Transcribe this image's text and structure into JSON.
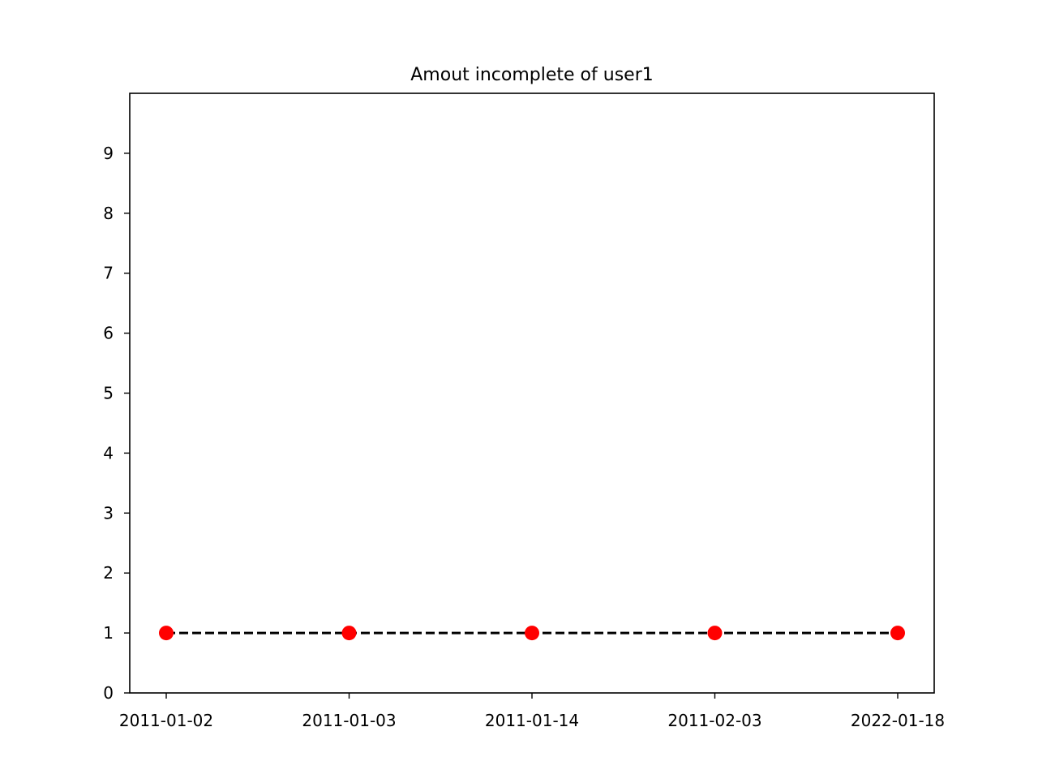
{
  "chart_data": {
    "type": "line",
    "title": "Amout incomplete of user1",
    "xlabel": "",
    "ylabel": "",
    "categories": [
      "2011-01-02",
      "2011-01-03",
      "2011-01-14",
      "2011-02-03",
      "2022-01-18"
    ],
    "series": [
      {
        "values": [
          1,
          1,
          1,
          1,
          1
        ],
        "line_color": "#000000",
        "line_style": "dashed",
        "marker_color": "#ff0000",
        "marker": "circle"
      }
    ],
    "ylim": [
      0,
      10
    ],
    "yticks": [
      0,
      1,
      2,
      3,
      4,
      5,
      6,
      7,
      8,
      9
    ],
    "grid": false,
    "legend": "none"
  }
}
